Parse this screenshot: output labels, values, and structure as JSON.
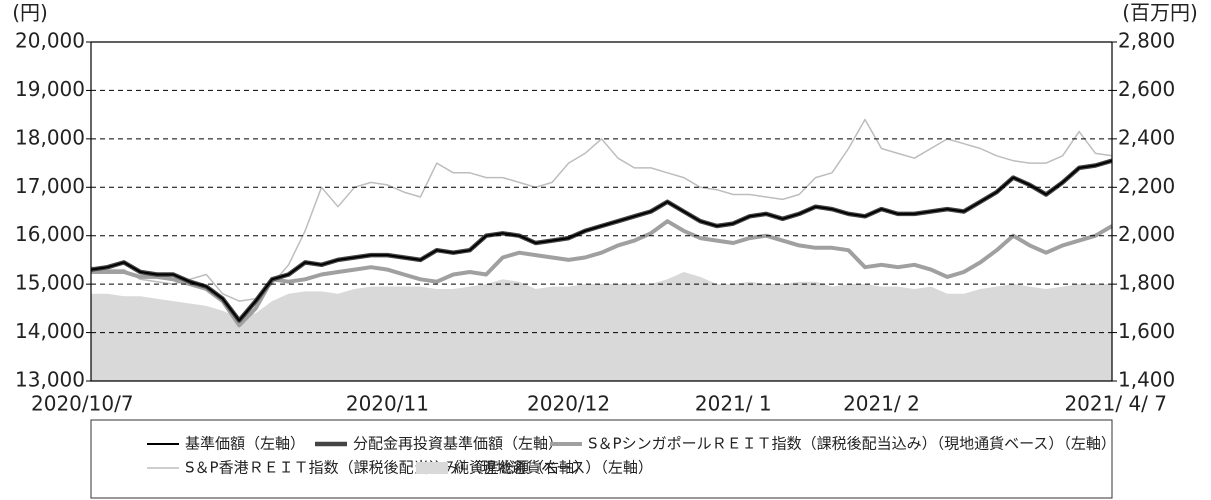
{
  "chart_data": {
    "type": "line",
    "y_unit_label": "(円)",
    "y2_unit_label": "(百万円)",
    "categories": [
      "2020/10/7",
      null,
      null,
      null,
      null,
      null,
      null,
      null,
      null,
      null,
      null,
      null,
      null,
      null,
      null,
      null,
      null,
      null,
      "2020/11",
      null,
      null,
      null,
      null,
      null,
      null,
      null,
      null,
      null,
      null,
      "2020/12",
      null,
      null,
      null,
      null,
      null,
      null,
      null,
      null,
      null,
      "2021/ 1",
      null,
      null,
      null,
      null,
      null,
      null,
      null,
      null,
      "2021/ 2",
      null,
      null,
      null,
      null,
      null,
      null,
      null,
      null,
      null,
      null,
      null,
      null,
      null,
      "2021/ 4/ 7"
    ],
    "ylim": [
      13000,
      20000
    ],
    "yticks": [
      {
        "value": 13000,
        "label": "13,000"
      },
      {
        "value": 14000,
        "label": "14,000"
      },
      {
        "value": 15000,
        "label": "15,000"
      },
      {
        "value": 16000,
        "label": "16,000"
      },
      {
        "value": 17000,
        "label": "17,000"
      },
      {
        "value": 18000,
        "label": "18,000"
      },
      {
        "value": 19000,
        "label": "19,000"
      },
      {
        "value": 20000,
        "label": "20,000"
      }
    ],
    "y2lim": [
      1400,
      2800
    ],
    "y2ticks": [
      {
        "value": 1400,
        "label": "1,400"
      },
      {
        "value": 1600,
        "label": "1,600"
      },
      {
        "value": 1800,
        "label": "1,800"
      },
      {
        "value": 2000,
        "label": "2,000"
      },
      {
        "value": 2200,
        "label": "2,200"
      },
      {
        "value": 2400,
        "label": "2,400"
      },
      {
        "value": 2600,
        "label": "2,600"
      },
      {
        "value": 2800,
        "label": "2,800"
      }
    ],
    "grid": true,
    "series": [
      {
        "name": "純資産総額（右軸）",
        "color": "#d9d9d9",
        "kind": "area",
        "axis": "y2",
        "values": [
          1760,
          1760,
          1750,
          1750,
          1740,
          1730,
          1720,
          1710,
          1690,
          1660,
          1680,
          1730,
          1760,
          1770,
          1770,
          1760,
          1780,
          1790,
          1790,
          1790,
          1790,
          1780,
          1780,
          1790,
          1800,
          1820,
          1810,
          1780,
          1790,
          1790,
          1800,
          1800,
          1800,
          1800,
          1800,
          1820,
          1850,
          1830,
          1800,
          1800,
          1810,
          1800,
          1800,
          1810,
          1810,
          1790,
          1800,
          1800,
          1790,
          1790,
          1780,
          1790,
          1760,
          1760,
          1780,
          1790,
          1800,
          1790,
          1780,
          1790,
          1800,
          1800,
          1800
        ]
      },
      {
        "name": "S＆P香港ＲＥＩＴ指数（課税後配当込み）（現地通貨ベース）（左軸）",
        "color": "#bdbdbd",
        "width": 1.5,
        "values": [
          15350,
          15300,
          15300,
          15100,
          15050,
          15000,
          15100,
          15200,
          14800,
          14650,
          14700,
          15000,
          15400,
          16100,
          17000,
          16600,
          17000,
          17100,
          17050,
          16900,
          16800,
          17500,
          17300,
          17300,
          17200,
          17200,
          17100,
          17000,
          17100,
          17500,
          17700,
          18000,
          17600,
          17400,
          17400,
          17300,
          17200,
          17000,
          16950,
          16850,
          16850,
          16800,
          16750,
          16850,
          17200,
          17300,
          17800,
          18400,
          17800,
          17700,
          17600,
          17800,
          18000,
          17900,
          17800,
          17650,
          17550,
          17500,
          17500,
          17650,
          18150,
          17700,
          17650
        ]
      },
      {
        "name": "S＆PシンガポールＲＥＩＴ指数（課税後配当込み）（現地通貨ベース）（左軸）",
        "color": "#a0a0a0",
        "width": 4,
        "values": [
          15250,
          15250,
          15250,
          15150,
          15150,
          15100,
          15000,
          14900,
          14650,
          14150,
          14500,
          15100,
          15050,
          15100,
          15200,
          15250,
          15300,
          15350,
          15300,
          15200,
          15100,
          15050,
          15200,
          15250,
          15200,
          15550,
          15650,
          15600,
          15550,
          15500,
          15550,
          15650,
          15800,
          15900,
          16050,
          16300,
          16100,
          15950,
          15900,
          15850,
          15950,
          16000,
          15900,
          15800,
          15750,
          15750,
          15700,
          15350,
          15400,
          15350,
          15400,
          15300,
          15150,
          15250,
          15450,
          15700,
          16000,
          15800,
          15650,
          15800,
          15900,
          16000,
          16200
        ]
      },
      {
        "name": "分配金再投資基準価額（左軸）",
        "color": "#444444",
        "width": 4.5,
        "values": [
          15300,
          15350,
          15450,
          15250,
          15200,
          15200,
          15050,
          14950,
          14700,
          14250,
          14650,
          15100,
          15200,
          15450,
          15400,
          15500,
          15550,
          15600,
          15600,
          15550,
          15500,
          15700,
          15650,
          15700,
          16000,
          16050,
          16000,
          15850,
          15900,
          15950,
          16100,
          16200,
          16300,
          16400,
          16500,
          16700,
          16500,
          16300,
          16200,
          16250,
          16400,
          16450,
          16350,
          16450,
          16600,
          16550,
          16450,
          16400,
          16550,
          16450,
          16450,
          16500,
          16550,
          16500,
          16700,
          16900,
          17200,
          17050,
          16850,
          17100,
          17400,
          17450,
          17550
        ]
      },
      {
        "name": "基準価額（左軸）",
        "color": "#000000",
        "width": 2,
        "values": [
          15300,
          15350,
          15450,
          15250,
          15200,
          15200,
          15050,
          14950,
          14700,
          14250,
          14650,
          15100,
          15200,
          15450,
          15400,
          15500,
          15550,
          15600,
          15600,
          15550,
          15500,
          15700,
          15650,
          15700,
          16000,
          16050,
          16000,
          15850,
          15900,
          15950,
          16100,
          16200,
          16300,
          16400,
          16500,
          16700,
          16500,
          16300,
          16200,
          16250,
          16400,
          16450,
          16350,
          16450,
          16600,
          16550,
          16450,
          16400,
          16550,
          16450,
          16450,
          16500,
          16550,
          16500,
          16700,
          16900,
          17200,
          17050,
          16850,
          17100,
          17400,
          17450,
          17550
        ]
      }
    ]
  }
}
